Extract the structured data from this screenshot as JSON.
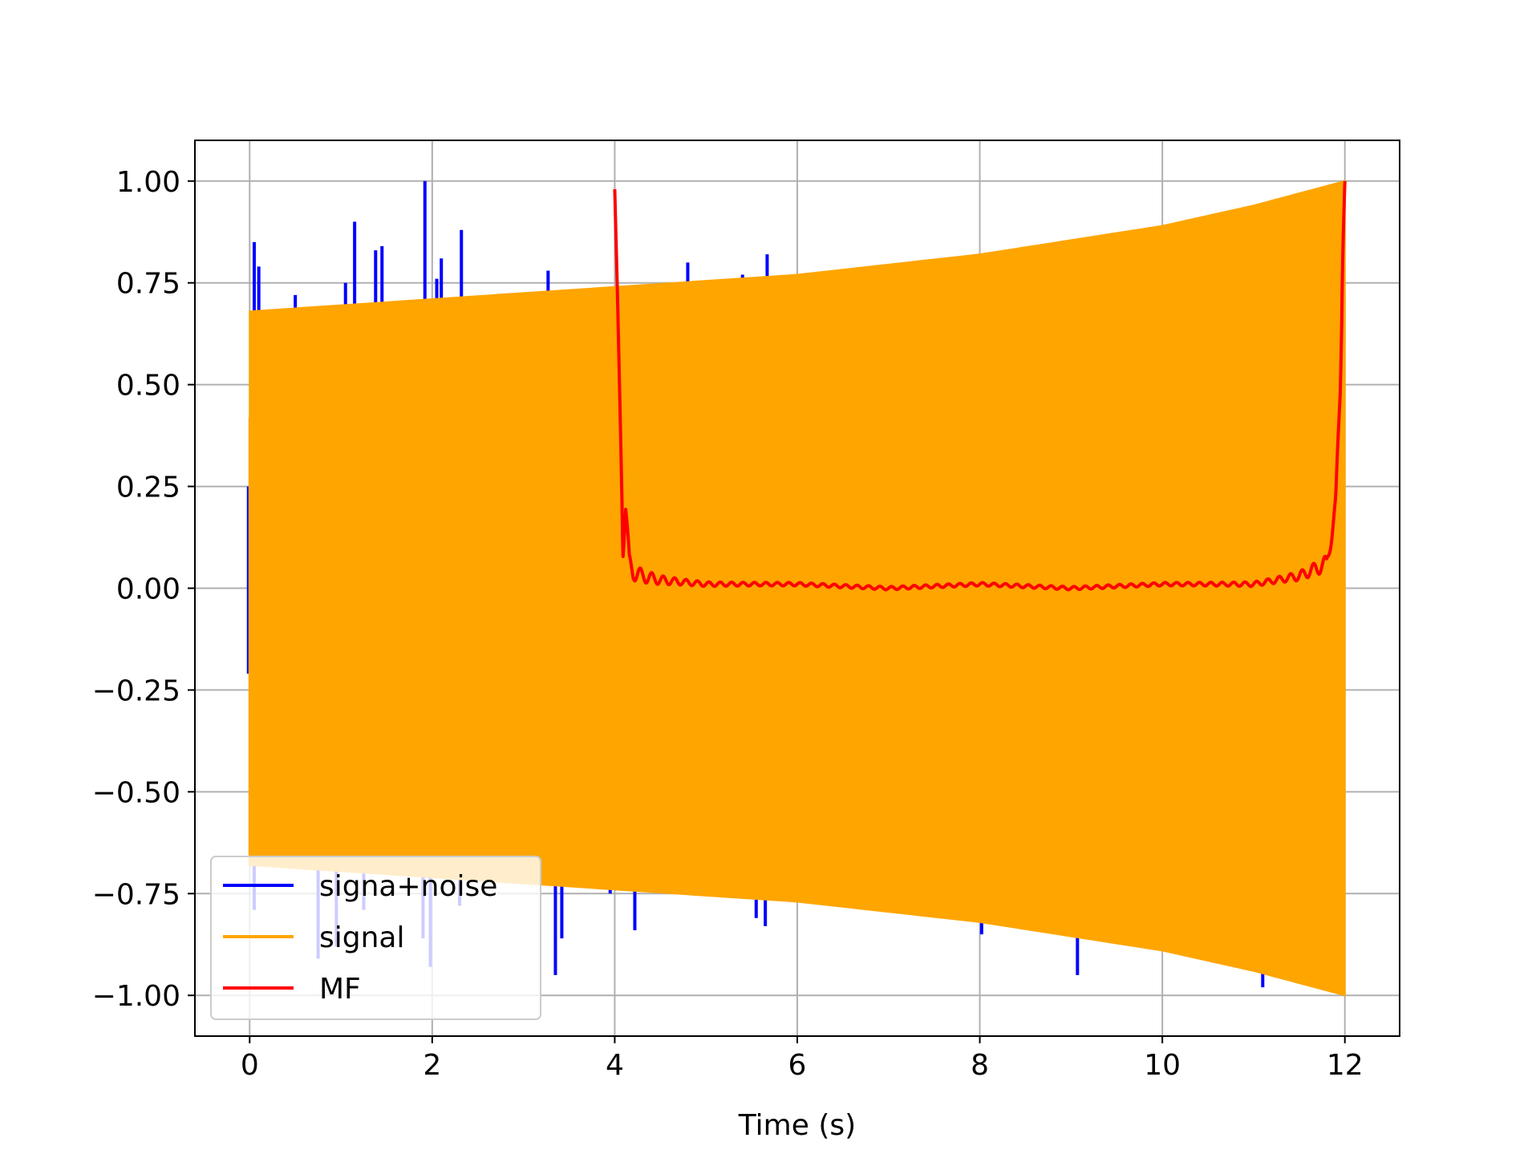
{
  "chart_data": {
    "type": "line",
    "title": "",
    "xlabel": "Time (s)",
    "ylabel": "",
    "xlim": [
      -0.6,
      12.6
    ],
    "ylim": [
      -1.1,
      1.1
    ],
    "grid": true,
    "legend_position": "lower-left",
    "x_ticks": [
      0,
      2,
      4,
      6,
      8,
      10,
      12
    ],
    "x_tick_labels": [
      "0",
      "2",
      "4",
      "6",
      "8",
      "10",
      "12"
    ],
    "y_ticks": [
      1.0,
      0.75,
      0.5,
      0.25,
      0.0,
      -0.25,
      -0.5,
      -0.75,
      -1.0
    ],
    "y_tick_labels": [
      "1.00",
      "0.75",
      "0.50",
      "0.25",
      "0.00",
      "−0.25",
      "−0.50",
      "−0.75",
      "−1.00"
    ],
    "series": [
      {
        "name": "signa+noise",
        "color": "#0000ff",
        "description_kind": "noise_spikes",
        "x_range": [
          0,
          12
        ],
        "spikes": [
          {
            "x": 0.05,
            "y": 0.85
          },
          {
            "x": 0.1,
            "y": 0.79
          },
          {
            "x": 0.5,
            "y": 0.72
          },
          {
            "x": 1.05,
            "y": 0.75
          },
          {
            "x": 1.15,
            "y": 0.9
          },
          {
            "x": 1.38,
            "y": 0.83
          },
          {
            "x": 1.45,
            "y": 0.84
          },
          {
            "x": 1.92,
            "y": 1.0
          },
          {
            "x": 2.05,
            "y": 0.76
          },
          {
            "x": 2.1,
            "y": 0.81
          },
          {
            "x": 2.32,
            "y": 0.88
          },
          {
            "x": 3.27,
            "y": 0.78
          },
          {
            "x": 4.8,
            "y": 0.8
          },
          {
            "x": 5.4,
            "y": 0.77
          },
          {
            "x": 5.67,
            "y": 0.82
          },
          {
            "x": 0.05,
            "y": -0.79
          },
          {
            "x": 0.75,
            "y": -0.91
          },
          {
            "x": 0.95,
            "y": -0.88
          },
          {
            "x": 1.25,
            "y": -0.79
          },
          {
            "x": 1.9,
            "y": -0.86
          },
          {
            "x": 1.98,
            "y": -0.93
          },
          {
            "x": 2.3,
            "y": -0.78
          },
          {
            "x": 3.35,
            "y": -0.95
          },
          {
            "x": 3.42,
            "y": -0.86
          },
          {
            "x": 3.95,
            "y": -0.75
          },
          {
            "x": 4.22,
            "y": -0.84
          },
          {
            "x": 5.55,
            "y": -0.81
          },
          {
            "x": 5.65,
            "y": -0.83
          },
          {
            "x": 7.95,
            "y": -0.82
          },
          {
            "x": 8.02,
            "y": -0.85
          },
          {
            "x": 9.07,
            "y": -0.95
          },
          {
            "x": 11.1,
            "y": -0.98
          }
        ]
      },
      {
        "name": "signal",
        "color": "#ffa500",
        "description_kind": "chirp_envelope",
        "x_range": [
          0,
          12
        ],
        "envelope_upper": [
          [
            0,
            0.68
          ],
          [
            2,
            0.71
          ],
          [
            4,
            0.74
          ],
          [
            6,
            0.77
          ],
          [
            8,
            0.82
          ],
          [
            10,
            0.89
          ],
          [
            11,
            0.94
          ],
          [
            12,
            1.0
          ]
        ],
        "envelope_lower": [
          [
            0,
            -0.68
          ],
          [
            2,
            -0.71
          ],
          [
            4,
            -0.74
          ],
          [
            6,
            -0.77
          ],
          [
            8,
            -0.82
          ],
          [
            10,
            -0.89
          ],
          [
            11,
            -0.94
          ],
          [
            12,
            -1.0
          ]
        ]
      },
      {
        "name": "MF",
        "color": "#ff0000",
        "description_kind": "matched_filter_output",
        "x": [
          4.0,
          4.03,
          4.06,
          4.09,
          4.12,
          4.16,
          4.2,
          4.3,
          4.5,
          5.0,
          6.0,
          7.0,
          8.0,
          9.0,
          10.0,
          11.0,
          11.5,
          11.8,
          11.9,
          11.95,
          11.98,
          12.0
        ],
        "y": [
          0.98,
          0.72,
          0.42,
          0.1,
          0.2,
          0.06,
          0.04,
          0.03,
          0.02,
          0.01,
          0.01,
          0.0,
          0.01,
          0.0,
          0.01,
          0.01,
          0.03,
          0.06,
          0.2,
          0.5,
          0.85,
          1.0
        ]
      }
    ]
  }
}
